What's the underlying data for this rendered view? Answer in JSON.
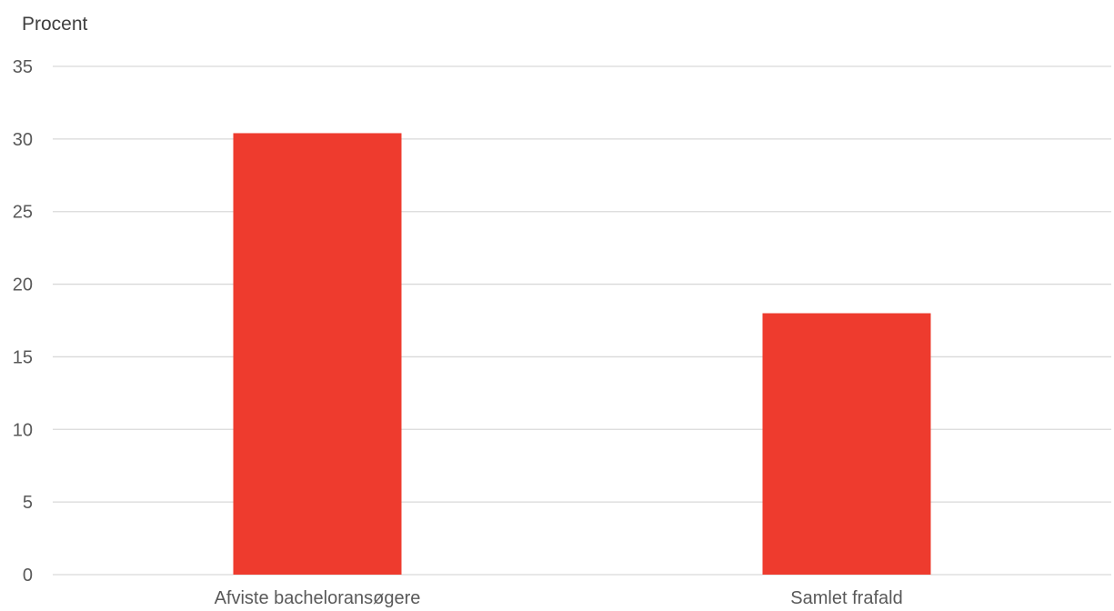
{
  "chart_data": {
    "type": "bar",
    "title": "",
    "ylabel": "Procent",
    "xlabel": "",
    "categories": [
      "Afviste bacheloransøgere",
      "Samlet frafald"
    ],
    "series": [
      {
        "values": [
          30.4,
          18.0
        ],
        "color": "#ee3b2e"
      }
    ],
    "ylim": [
      0,
      35
    ],
    "yticks": [
      0,
      5,
      10,
      15,
      20,
      25,
      30,
      35
    ],
    "grid": true,
    "legend": "none"
  }
}
